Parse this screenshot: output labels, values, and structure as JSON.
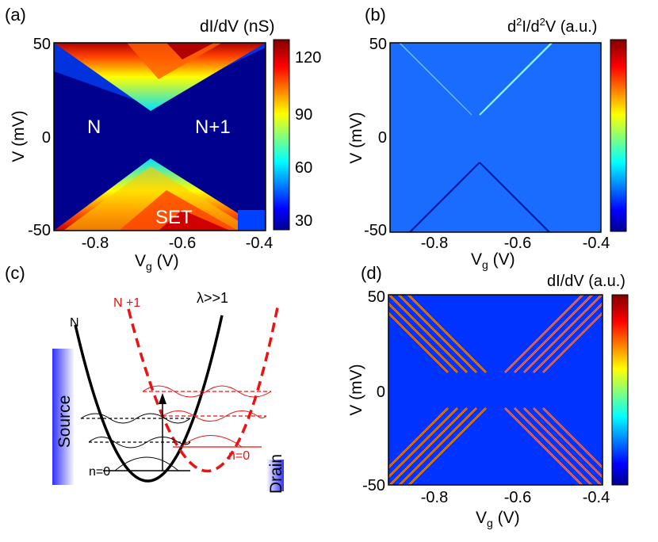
{
  "panels": {
    "a": {
      "tag": "(a)",
      "title": "dI/dV (nS)",
      "ylabel": "V (mV)",
      "xlabel_main": "V",
      "xlabel_sub": "g",
      "xlabel_unit": " (V)",
      "xticks": [
        "-0.8",
        "-0.6",
        "-0.4"
      ],
      "yticks": [
        "50",
        "0",
        "-50"
      ],
      "cbar_ticks": [
        "120",
        "90",
        "60",
        "30"
      ],
      "region_left": "N",
      "region_right": "N+1",
      "region_bottom": "SET"
    },
    "b": {
      "tag": "(b)",
      "title_pre": "d",
      "title_sup1": "2",
      "title_mid": "I/d",
      "title_sup2": "2",
      "title_post": "V (a.u.)",
      "ylabel": "V (mV)",
      "xlabel_main": "V",
      "xlabel_sub": "g",
      "xlabel_unit": " (V)",
      "xticks": [
        "-0.8",
        "-0.6",
        "-0.4"
      ],
      "yticks": [
        "50",
        "0",
        "-50"
      ]
    },
    "c": {
      "tag": "(c)",
      "label_n": "N",
      "label_n1": "N +1",
      "label_lambda": "λ>>1",
      "label_source": "Source",
      "label_drain": "Drain",
      "label_n0_left": "n=0",
      "label_n0_right": "n=0"
    },
    "d": {
      "tag": "(d)",
      "title": "dI/dV (a.u.)",
      "ylabel": "V (mV)",
      "xlabel_main": "V",
      "xlabel_sub": "g",
      "xlabel_unit": " (V)",
      "xticks": [
        "-0.8",
        "-0.6",
        "-0.4"
      ],
      "yticks": [
        "50",
        "0",
        "-50"
      ]
    }
  },
  "chart_data": [
    {
      "type": "heatmap",
      "panel": "a",
      "title": "dI/dV (nS)",
      "xlabel": "Vg (V)",
      "ylabel": "V (mV)",
      "xlim": [
        -0.9,
        -0.4
      ],
      "ylim": [
        -52,
        52
      ],
      "colorbar_range": [
        20,
        130
      ],
      "colorbar_ticks": [
        30,
        60,
        90,
        120
      ],
      "annotations": [
        "N",
        "N+1",
        "SET"
      ]
    },
    {
      "type": "heatmap",
      "panel": "b",
      "title": "d2I/d2V (a.u.)",
      "xlabel": "Vg (V)",
      "ylabel": "V (mV)",
      "xlim": [
        -0.9,
        -0.4
      ],
      "ylim": [
        -52,
        52
      ]
    },
    {
      "type": "heatmap",
      "panel": "d",
      "title": "dI/dV (a.u.)",
      "xlabel": "Vg (V)",
      "ylabel": "V (mV)",
      "xlim": [
        -0.9,
        -0.4
      ],
      "ylim": [
        -52,
        52
      ],
      "line_count_per_edge": 5
    }
  ],
  "colors": {
    "jet_dark_blue": "#00008f",
    "jet_blue": "#0000ff",
    "jet_cyan": "#00ffff",
    "jet_yellow": "#ffff00",
    "jet_orange": "#ff8000",
    "jet_red": "#ff0000",
    "jet_dark_red": "#800000",
    "parabola_n1": "#ee1111",
    "parabola_n": "#000000"
  }
}
